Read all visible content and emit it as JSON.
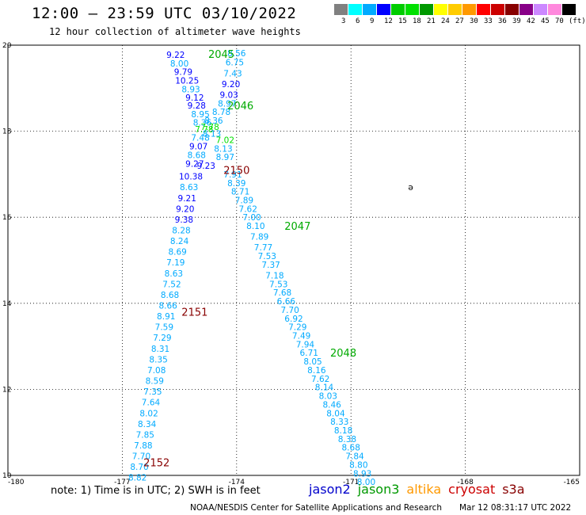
{
  "header": {
    "title": "12:00 — 23:59 UTC 03/10/2022",
    "subtitle": "12 hour collection of altimeter wave heights"
  },
  "legend": {
    "unit": "(ft)",
    "items": [
      {
        "label": "3",
        "color": "#808080"
      },
      {
        "label": "6",
        "color": "#00ffff"
      },
      {
        "label": "9",
        "color": "#00aaff"
      },
      {
        "label": "12",
        "color": "#0000ff"
      },
      {
        "label": "15",
        "color": "#00cc00"
      },
      {
        "label": "18",
        "color": "#00e000"
      },
      {
        "label": "21",
        "color": "#009900"
      },
      {
        "label": "24",
        "color": "#ffff00"
      },
      {
        "label": "27",
        "color": "#ffcc00"
      },
      {
        "label": "30",
        "color": "#ff9900"
      },
      {
        "label": "33",
        "color": "#ff0000"
      },
      {
        "label": "36",
        "color": "#cc0000"
      },
      {
        "label": "39",
        "color": "#880000"
      },
      {
        "label": "42",
        "color": "#880088"
      },
      {
        "label": "45",
        "color": "#cc88ff"
      },
      {
        "label": "70",
        "color": "#ff88dd"
      },
      {
        "label": "",
        "color": "#000000"
      }
    ]
  },
  "map": {
    "lon_range": [
      -180,
      -165
    ],
    "lat_range": [
      10,
      20
    ],
    "lon_ticks": [
      "-180",
      "-177",
      "-174",
      "-171",
      "-168",
      "-165"
    ],
    "lat_ticks": [
      "10",
      "12",
      "14",
      "16",
      "18",
      "20"
    ],
    "annotation_symbol": "ə",
    "annotation_position": {
      "lon": -169.5,
      "lat": 16.7
    },
    "tracks": [
      {
        "satellite": "jason3",
        "color": "#00aa00",
        "labels": [
          {
            "text": "2045",
            "lon": -174.4,
            "lat": 19.8
          },
          {
            "text": "2046",
            "lon": -173.9,
            "lat": 18.6
          },
          {
            "text": "2047",
            "lon": -172.4,
            "lat": 15.8
          },
          {
            "text": "2048",
            "lon": -171.2,
            "lat": 12.85
          }
        ]
      },
      {
        "satellite": "cryosat",
        "color": "#880000",
        "labels": [
          {
            "text": "2150",
            "lon": -174.0,
            "lat": 17.1
          },
          {
            "text": "2151",
            "lon": -175.1,
            "lat": 13.8
          },
          {
            "text": "2152",
            "lon": -176.1,
            "lat": 10.3
          }
        ]
      }
    ],
    "points": [
      {
        "v": "9.22",
        "lon": -175.6,
        "lat": 19.78,
        "c": "#0000ff"
      },
      {
        "v": "8.00",
        "lon": -175.5,
        "lat": 19.58,
        "c": "#00aaff"
      },
      {
        "v": "9.79",
        "lon": -175.4,
        "lat": 19.38,
        "c": "#0000ff"
      },
      {
        "v": "10.25",
        "lon": -175.3,
        "lat": 19.18,
        "c": "#0000ff"
      },
      {
        "v": "8.93",
        "lon": -175.2,
        "lat": 18.98,
        "c": "#00aaff"
      },
      {
        "v": "9.12",
        "lon": -175.1,
        "lat": 18.78,
        "c": "#0000ff"
      },
      {
        "v": "9.28",
        "lon": -175.05,
        "lat": 18.6,
        "c": "#0000ff"
      },
      {
        "v": "8.95",
        "lon": -174.95,
        "lat": 18.4,
        "c": "#00aaff"
      },
      {
        "v": "8.36",
        "lon": -174.9,
        "lat": 18.2,
        "c": "#00aaff"
      },
      {
        "v": "7.78",
        "lon": -174.85,
        "lat": 18.05,
        "c": "#00e000"
      },
      {
        "v": "7.48",
        "lon": -174.95,
        "lat": 17.85,
        "c": "#00aaff"
      },
      {
        "v": "9.07",
        "lon": -175.0,
        "lat": 17.65,
        "c": "#0000ff"
      },
      {
        "v": "8.68",
        "lon": -175.05,
        "lat": 17.45,
        "c": "#00aaff"
      },
      {
        "v": "9.27",
        "lon": -175.1,
        "lat": 17.25,
        "c": "#0000ff"
      },
      {
        "v": "10.38",
        "lon": -175.2,
        "lat": 16.95,
        "c": "#0000ff"
      },
      {
        "v": "8.63",
        "lon": -175.25,
        "lat": 16.7,
        "c": "#00aaff"
      },
      {
        "v": "9.21",
        "lon": -175.3,
        "lat": 16.45,
        "c": "#0000ff"
      },
      {
        "v": "9.20",
        "lon": -175.35,
        "lat": 16.2,
        "c": "#0000ff"
      },
      {
        "v": "9.38",
        "lon": -175.38,
        "lat": 15.95,
        "c": "#0000ff"
      },
      {
        "v": "8.28",
        "lon": -175.45,
        "lat": 15.7,
        "c": "#00aaff"
      },
      {
        "v": "8.24",
        "lon": -175.5,
        "lat": 15.45,
        "c": "#00aaff"
      },
      {
        "v": "8.69",
        "lon": -175.55,
        "lat": 15.2,
        "c": "#00aaff"
      },
      {
        "v": "7.19",
        "lon": -175.6,
        "lat": 14.95,
        "c": "#00aaff"
      },
      {
        "v": "8.63",
        "lon": -175.65,
        "lat": 14.7,
        "c": "#00aaff"
      },
      {
        "v": "7.52",
        "lon": -175.7,
        "lat": 14.45,
        "c": "#00aaff"
      },
      {
        "v": "8.68",
        "lon": -175.75,
        "lat": 14.2,
        "c": "#00aaff"
      },
      {
        "v": "8.66",
        "lon": -175.8,
        "lat": 13.95,
        "c": "#00aaff"
      },
      {
        "v": "8.91",
        "lon": -175.85,
        "lat": 13.7,
        "c": "#00aaff"
      },
      {
        "v": "7.59",
        "lon": -175.9,
        "lat": 13.45,
        "c": "#00aaff"
      },
      {
        "v": "7.29",
        "lon": -175.95,
        "lat": 13.2,
        "c": "#00aaff"
      },
      {
        "v": "8.31",
        "lon": -176.0,
        "lat": 12.95,
        "c": "#00aaff"
      },
      {
        "v": "8.35",
        "lon": -176.05,
        "lat": 12.7,
        "c": "#00aaff"
      },
      {
        "v": "7.08",
        "lon": -176.1,
        "lat": 12.45,
        "c": "#00aaff"
      },
      {
        "v": "8.59",
        "lon": -176.15,
        "lat": 12.2,
        "c": "#00aaff"
      },
      {
        "v": "7.35",
        "lon": -176.2,
        "lat": 11.95,
        "c": "#00aaff"
      },
      {
        "v": "7.64",
        "lon": -176.25,
        "lat": 11.7,
        "c": "#00aaff"
      },
      {
        "v": "8.02",
        "lon": -176.3,
        "lat": 11.45,
        "c": "#00aaff"
      },
      {
        "v": "8.34",
        "lon": -176.35,
        "lat": 11.2,
        "c": "#00aaff"
      },
      {
        "v": "7.85",
        "lon": -176.4,
        "lat": 10.95,
        "c": "#00aaff"
      },
      {
        "v": "7.88",
        "lon": -176.45,
        "lat": 10.7,
        "c": "#00aaff"
      },
      {
        "v": "7.70",
        "lon": -176.5,
        "lat": 10.45,
        "c": "#00aaff"
      },
      {
        "v": "8.70",
        "lon": -176.55,
        "lat": 10.2,
        "c": "#00aaff"
      },
      {
        "v": "8.82",
        "lon": -176.6,
        "lat": 9.95,
        "c": "#00aaff"
      },
      {
        "v": "8.56",
        "lon": -174.0,
        "lat": 19.82,
        "c": "#00aaff"
      },
      {
        "v": "6.75",
        "lon": -174.05,
        "lat": 19.6,
        "c": "#00aaff"
      },
      {
        "v": "7.43",
        "lon": -174.1,
        "lat": 19.35,
        "c": "#00aaff"
      },
      {
        "v": "9.20",
        "lon": -174.15,
        "lat": 19.1,
        "c": "#0000ff"
      },
      {
        "v": "9.03",
        "lon": -174.2,
        "lat": 18.85,
        "c": "#0000ff"
      },
      {
        "v": "8.97",
        "lon": -174.25,
        "lat": 18.65,
        "c": "#00aaff"
      },
      {
        "v": "8.78",
        "lon": -174.4,
        "lat": 18.45,
        "c": "#00aaff"
      },
      {
        "v": "8.36",
        "lon": -174.6,
        "lat": 18.25,
        "c": "#00aaff"
      },
      {
        "v": "7.78",
        "lon": -174.7,
        "lat": 18.1,
        "c": "#00e000"
      },
      {
        "v": "8.13",
        "lon": -174.65,
        "lat": 17.95,
        "c": "#00aaff"
      },
      {
        "v": "7.02",
        "lon": -174.3,
        "lat": 17.8,
        "c": "#00e000"
      },
      {
        "v": "8.13",
        "lon": -174.35,
        "lat": 17.6,
        "c": "#00aaff"
      },
      {
        "v": "8.97",
        "lon": -174.3,
        "lat": 17.4,
        "c": "#00aaff"
      },
      {
        "v": "9.23",
        "lon": -174.8,
        "lat": 17.2,
        "c": "#0000ff"
      },
      {
        "v": "7.91",
        "lon": -174.1,
        "lat": 17.0,
        "c": "#00aaff"
      },
      {
        "v": "8.39",
        "lon": -174.0,
        "lat": 16.8,
        "c": "#00aaff"
      },
      {
        "v": "8.71",
        "lon": -173.9,
        "lat": 16.6,
        "c": "#00aaff"
      },
      {
        "v": "7.89",
        "lon": -173.8,
        "lat": 16.4,
        "c": "#00aaff"
      },
      {
        "v": "7.62",
        "lon": -173.7,
        "lat": 16.2,
        "c": "#00aaff"
      },
      {
        "v": "7.00",
        "lon": -173.6,
        "lat": 16.0,
        "c": "#00aaff"
      },
      {
        "v": "8.10",
        "lon": -173.5,
        "lat": 15.8,
        "c": "#00aaff"
      },
      {
        "v": "7.89",
        "lon": -173.4,
        "lat": 15.55,
        "c": "#00aaff"
      },
      {
        "v": "7.77",
        "lon": -173.3,
        "lat": 15.3,
        "c": "#00aaff"
      },
      {
        "v": "7.53",
        "lon": -173.2,
        "lat": 15.1,
        "c": "#00aaff"
      },
      {
        "v": "7.37",
        "lon": -173.1,
        "lat": 14.9,
        "c": "#00aaff"
      },
      {
        "v": "7.18",
        "lon": -173.0,
        "lat": 14.65,
        "c": "#00aaff"
      },
      {
        "v": "7.53",
        "lon": -172.9,
        "lat": 14.45,
        "c": "#00aaff"
      },
      {
        "v": "7.68",
        "lon": -172.8,
        "lat": 14.25,
        "c": "#00aaff"
      },
      {
        "v": "6.66",
        "lon": -172.7,
        "lat": 14.05,
        "c": "#00aaff"
      },
      {
        "v": "7.70",
        "lon": -172.6,
        "lat": 13.85,
        "c": "#00aaff"
      },
      {
        "v": "6.92",
        "lon": -172.5,
        "lat": 13.65,
        "c": "#00aaff"
      },
      {
        "v": "7.29",
        "lon": -172.4,
        "lat": 13.45,
        "c": "#00aaff"
      },
      {
        "v": "7.49",
        "lon": -172.3,
        "lat": 13.25,
        "c": "#00aaff"
      },
      {
        "v": "7.94",
        "lon": -172.2,
        "lat": 13.05,
        "c": "#00aaff"
      },
      {
        "v": "6.71",
        "lon": -172.1,
        "lat": 12.85,
        "c": "#00aaff"
      },
      {
        "v": "8.05",
        "lon": -172.0,
        "lat": 12.65,
        "c": "#00aaff"
      },
      {
        "v": "8.16",
        "lon": -171.9,
        "lat": 12.45,
        "c": "#00aaff"
      },
      {
        "v": "7.62",
        "lon": -171.8,
        "lat": 12.25,
        "c": "#00aaff"
      },
      {
        "v": "8.14",
        "lon": -171.7,
        "lat": 12.05,
        "c": "#00aaff"
      },
      {
        "v": "8.03",
        "lon": -171.6,
        "lat": 11.85,
        "c": "#00aaff"
      },
      {
        "v": "8.46",
        "lon": -171.5,
        "lat": 11.65,
        "c": "#00aaff"
      },
      {
        "v": "8.04",
        "lon": -171.4,
        "lat": 11.45,
        "c": "#00aaff"
      },
      {
        "v": "8.33",
        "lon": -171.3,
        "lat": 11.25,
        "c": "#00aaff"
      },
      {
        "v": "8.18",
        "lon": -171.2,
        "lat": 11.05,
        "c": "#00aaff"
      },
      {
        "v": "8.38",
        "lon": -171.1,
        "lat": 10.85,
        "c": "#00aaff"
      },
      {
        "v": "8.68",
        "lon": -171.0,
        "lat": 10.65,
        "c": "#00aaff"
      },
      {
        "v": "7.84",
        "lon": -170.9,
        "lat": 10.45,
        "c": "#00aaff"
      },
      {
        "v": "8.80",
        "lon": -170.8,
        "lat": 10.25,
        "c": "#00aaff"
      },
      {
        "v": "8.93",
        "lon": -170.7,
        "lat": 10.05,
        "c": "#00aaff"
      },
      {
        "v": "8.00",
        "lon": -170.6,
        "lat": 9.85,
        "c": "#00aaff"
      }
    ]
  },
  "footer": {
    "note": "note:  1) Time is in UTC;  2) SWH is in feet",
    "satellites": [
      {
        "name": "jason2",
        "color": "#0000cc"
      },
      {
        "name": "jason3",
        "color": "#009900"
      },
      {
        "name": "altika",
        "color": "#ff9900"
      },
      {
        "name": "cryosat",
        "color": "#cc0000"
      },
      {
        "name": "s3a",
        "color": "#880000"
      }
    ],
    "credit": "NOAA/NESDIS Center for Satellite Applications and Research",
    "timestamp": "Mar 12 08:31:17 UTC 2022"
  }
}
